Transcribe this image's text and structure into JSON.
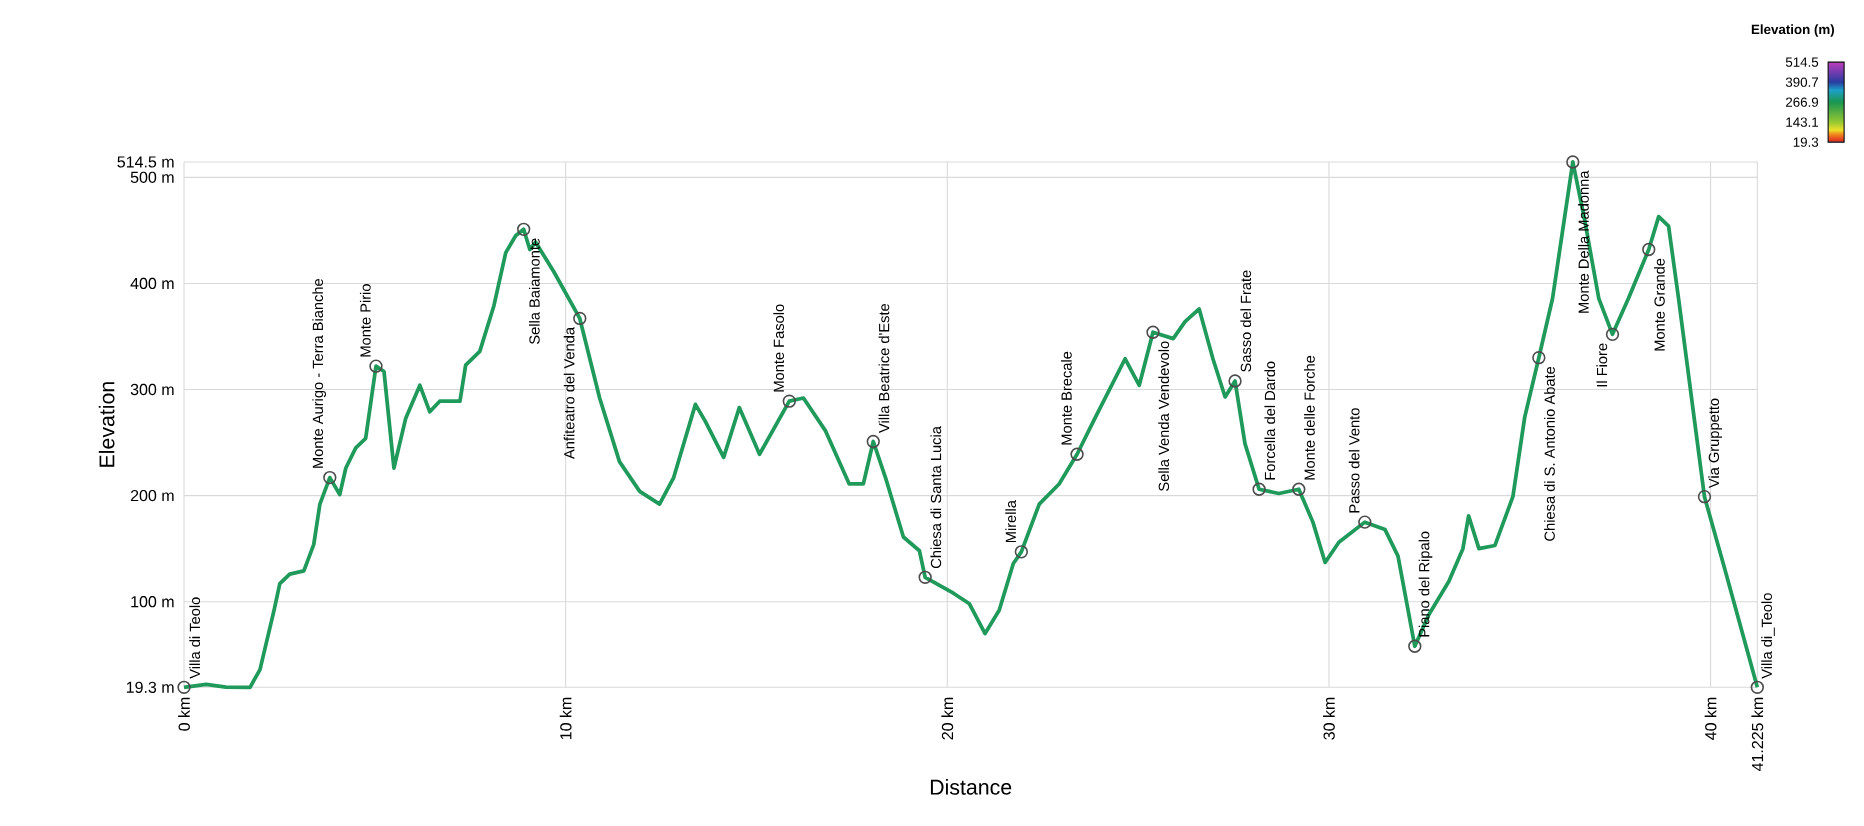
{
  "chart_data": {
    "type": "line",
    "xlabel": "Distance",
    "ylabel": "Elevation",
    "clabel": "Elevation (m)",
    "x": [
      0,
      0.58,
      1.1,
      1.73,
      1.99,
      2.36,
      2.51,
      2.77,
      3.14,
      3.4,
      3.56,
      3.82,
      4.08,
      4.24,
      4.5,
      4.76,
      5.03,
      5.24,
      5.5,
      5.81,
      6.18,
      6.44,
      6.7,
      7.23,
      7.38,
      7.75,
      8.12,
      8.43,
      8.69,
      8.9,
      9.06,
      9.21,
      9.69,
      10.37,
      10.89,
      11.41,
      11.94,
      12.46,
      12.83,
      13.4,
      13.66,
      14.14,
      14.55,
      15.08,
      15.86,
      16.23,
      16.81,
      17.43,
      17.8,
      18.06,
      18.38,
      18.85,
      19.27,
      19.42,
      20.16,
      20.58,
      20.99,
      21.36,
      21.73,
      21.94,
      22.41,
      22.93,
      23.4,
      23.87,
      24.66,
      25.03,
      25.39,
      25.92,
      26.23,
      26.6,
      26.96,
      27.28,
      27.54,
      27.8,
      28.17,
      28.69,
      29.21,
      29.58,
      29.9,
      30.26,
      30.94,
      31.47,
      31.81,
      32.25,
      32.62,
      33.14,
      33.51,
      33.66,
      33.93,
      34.35,
      34.82,
      35.13,
      35.5,
      35.86,
      36.39,
      36.7,
      37.07,
      37.43,
      37.85,
      38.38,
      38.64,
      38.9,
      39.16,
      39.84,
      40.37,
      41.225
    ],
    "values": [
      19.3,
      22,
      19.5,
      19.3,
      36,
      92,
      117,
      126,
      129,
      154,
      192,
      217,
      201,
      226,
      245,
      254,
      322,
      317,
      226,
      273,
      304,
      279,
      289,
      289,
      323,
      336,
      379,
      429,
      445,
      451,
      432,
      439,
      411,
      367,
      292,
      232,
      204,
      192,
      217,
      286,
      270,
      236,
      283,
      239,
      289,
      292,
      261,
      211,
      211,
      251,
      217,
      161,
      148,
      123,
      108,
      98,
      70,
      92,
      136,
      147,
      192,
      211,
      239,
      273,
      329,
      304,
      354,
      348,
      364,
      376,
      329,
      293,
      308,
      249,
      206,
      202,
      206,
      175,
      137,
      156,
      175,
      168,
      143,
      58,
      88,
      119,
      150,
      181,
      150,
      153,
      199,
      274,
      330,
      386,
      514.5,
      460,
      386,
      352,
      386,
      432,
      463,
      454,
      386,
      199,
      131,
      19.3
    ],
    "xlim": [
      0,
      41.225
    ],
    "ylim": [
      19.3,
      514.5
    ],
    "xticks": [
      {
        "value": 0,
        "label": "0 km"
      },
      {
        "value": 10,
        "label": "10 km"
      },
      {
        "value": 20,
        "label": "20 km"
      },
      {
        "value": 30,
        "label": "30 km"
      },
      {
        "value": 40,
        "label": "40 km"
      },
      {
        "value": 41.225,
        "label": "41.225 km"
      }
    ],
    "yticks": [
      {
        "value": 19.3,
        "label": "19.3 m"
      },
      {
        "value": 100,
        "label": "100 m"
      },
      {
        "value": 200,
        "label": "200 m"
      },
      {
        "value": 300,
        "label": "300 m"
      },
      {
        "value": 400,
        "label": "400 m"
      },
      {
        "value": 500,
        "label": "500 m"
      },
      {
        "value": 514.5,
        "label": "514.5 m"
      }
    ],
    "clim": [
      19.3,
      514.5
    ],
    "cticks": [
      19.3,
      143.1,
      266.9,
      390.7,
      514.5
    ],
    "color": "#1f9a5a",
    "grid": true,
    "marker": "none",
    "line_style": "solid",
    "annotations": [
      {
        "text": "Villa di Teolo",
        "x": 0,
        "y": 19.3
      },
      {
        "text": "Monte Aurigo - Terra Bianche",
        "x": 3.82,
        "y": 217
      },
      {
        "text": "Monte Pirio",
        "x": 5.03,
        "y": 322
      },
      {
        "text": "Sella Baiamonte",
        "x": 8.9,
        "y": 451
      },
      {
        "text": "Anfiteatro del Venda",
        "x": 10.37,
        "y": 367
      },
      {
        "text": "Monte Fasolo",
        "x": 15.86,
        "y": 289
      },
      {
        "text": "Villa Beatrice d'Este",
        "x": 18.06,
        "y": 251
      },
      {
        "text": "Chiesa di Santa Lucia",
        "x": 19.42,
        "y": 123
      },
      {
        "text": "Mirella",
        "x": 21.94,
        "y": 147
      },
      {
        "text": "Monte Brecale",
        "x": 23.4,
        "y": 239
      },
      {
        "text": "Sella Venda Vendevolo",
        "x": 25.39,
        "y": 354
      },
      {
        "text": "Sasso del Frate",
        "x": 27.54,
        "y": 308
      },
      {
        "text": "Forcella del Dardo",
        "x": 28.17,
        "y": 206
      },
      {
        "text": "Monte delle Forche",
        "x": 29.21,
        "y": 206
      },
      {
        "text": "Passo del Vento",
        "x": 30.94,
        "y": 175
      },
      {
        "text": "Piano del Ripalo",
        "x": 32.25,
        "y": 58
      },
      {
        "text": "Chiesa di S. Antonio Abate",
        "x": 35.5,
        "y": 330
      },
      {
        "text": "Monte Della Madonna",
        "x": 36.39,
        "y": 514.5
      },
      {
        "text": "Il Fiore",
        "x": 37.43,
        "y": 352
      },
      {
        "text": "Monte Grande",
        "x": 38.38,
        "y": 432
      },
      {
        "text": "Via Gruppetto",
        "x": 39.84,
        "y": 199
      },
      {
        "text": "Villa di_Teolo",
        "x": 41.225,
        "y": 19.3
      }
    ]
  }
}
